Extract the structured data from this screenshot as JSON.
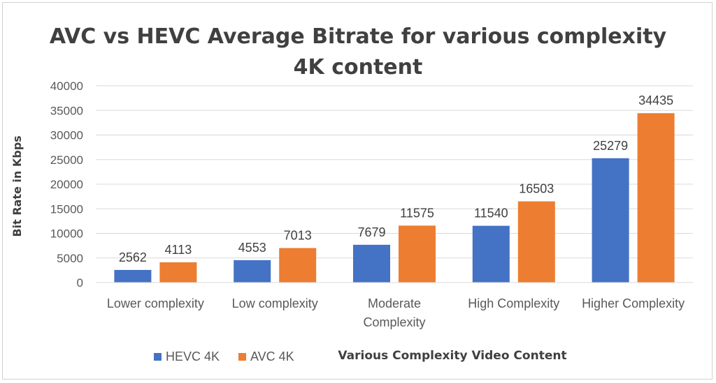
{
  "chart_data": {
    "type": "bar",
    "title_lines": [
      "AVC vs HEVC Average Bitrate for various complexity",
      "4K content"
    ],
    "xlabel": "Various Complexity Video Content",
    "ylabel": "Bit Rate in Kbps",
    "ylim": [
      0,
      40000
    ],
    "yticks": [
      0,
      5000,
      10000,
      15000,
      20000,
      25000,
      30000,
      35000,
      40000
    ],
    "grid": true,
    "legend_position": "bottom-left",
    "categories": [
      [
        "Lower complexity"
      ],
      [
        "Low complexity"
      ],
      [
        "Moderate",
        "Complexity"
      ],
      [
        "High Complexity"
      ],
      [
        "Higher Complexity"
      ]
    ],
    "series": [
      {
        "name": "HEVC 4K",
        "color": "#4472C4",
        "values": [
          2562,
          4553,
          7679,
          11540,
          25279
        ]
      },
      {
        "name": "AVC 4K",
        "color": "#ED7D31",
        "values": [
          4113,
          7013,
          11575,
          16503,
          34435
        ]
      }
    ]
  }
}
